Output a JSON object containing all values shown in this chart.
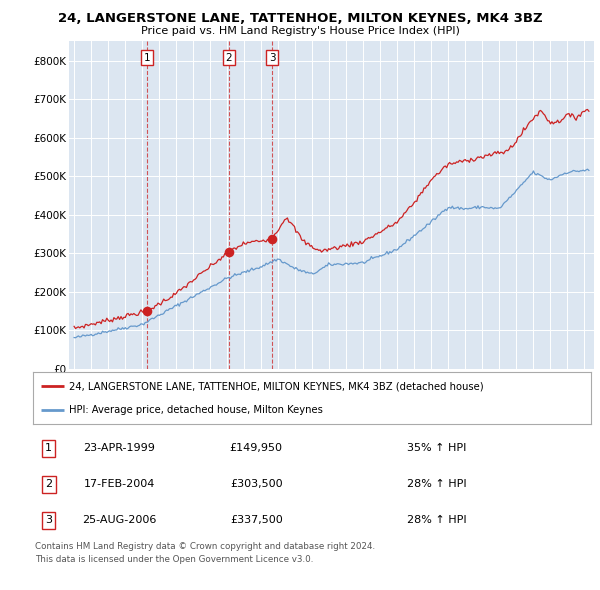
{
  "title": "24, LANGERSTONE LANE, TATTENHOE, MILTON KEYNES, MK4 3BZ",
  "subtitle": "Price paid vs. HM Land Registry's House Price Index (HPI)",
  "plot_bg_color": "#dce6f1",
  "red_line_label": "24, LANGERSTONE LANE, TATTENHOE, MILTON KEYNES, MK4 3BZ (detached house)",
  "blue_line_label": "HPI: Average price, detached house, Milton Keynes",
  "transactions": [
    {
      "num": 1,
      "date": "23-APR-1999",
      "year": 1999.3,
      "price": 149950,
      "pct": "35%",
      "dir": "↑"
    },
    {
      "num": 2,
      "date": "17-FEB-2004",
      "year": 2004.12,
      "price": 303500,
      "pct": "28%",
      "dir": "↑"
    },
    {
      "num": 3,
      "date": "25-AUG-2006",
      "year": 2006.65,
      "price": 337500,
      "pct": "28%",
      "dir": "↑"
    }
  ],
  "footer1": "Contains HM Land Registry data © Crown copyright and database right 2024.",
  "footer2": "This data is licensed under the Open Government Licence v3.0.",
  "ylim": [
    0,
    850000
  ],
  "yticks": [
    0,
    100000,
    200000,
    300000,
    400000,
    500000,
    600000,
    700000,
    800000
  ],
  "ytick_labels": [
    "£0",
    "£100K",
    "£200K",
    "£300K",
    "£400K",
    "£500K",
    "£600K",
    "£700K",
    "£800K"
  ],
  "red_anchors": {
    "1995.0": 105000,
    "1999.3": 149950,
    "2001.0": 195000,
    "2004.12": 303500,
    "2005.0": 325000,
    "2006.65": 337500,
    "2007.5": 395000,
    "2008.5": 330000,
    "2009.5": 305000,
    "2010.5": 315000,
    "2012.0": 330000,
    "2014.0": 380000,
    "2015.0": 430000,
    "2016.0": 490000,
    "2017.0": 530000,
    "2018.0": 540000,
    "2019.5": 555000,
    "2020.5": 565000,
    "2021.0": 590000,
    "2022.0": 650000,
    "2022.5": 670000,
    "2023.0": 640000,
    "2023.5": 640000,
    "2024.0": 660000,
    "2024.5": 650000,
    "2025.0": 670000
  },
  "blue_anchors": {
    "1995.0": 80000,
    "1999.0": 115000,
    "2004.0": 235000,
    "2006.0": 265000,
    "2007.0": 285000,
    "2008.0": 260000,
    "2009.0": 245000,
    "2010.0": 270000,
    "2012.0": 275000,
    "2014.0": 310000,
    "2016.0": 380000,
    "2017.0": 420000,
    "2018.0": 415000,
    "2019.0": 420000,
    "2020.0": 415000,
    "2021.0": 460000,
    "2022.0": 510000,
    "2023.0": 490000,
    "2024.0": 510000,
    "2025.0": 515000
  }
}
